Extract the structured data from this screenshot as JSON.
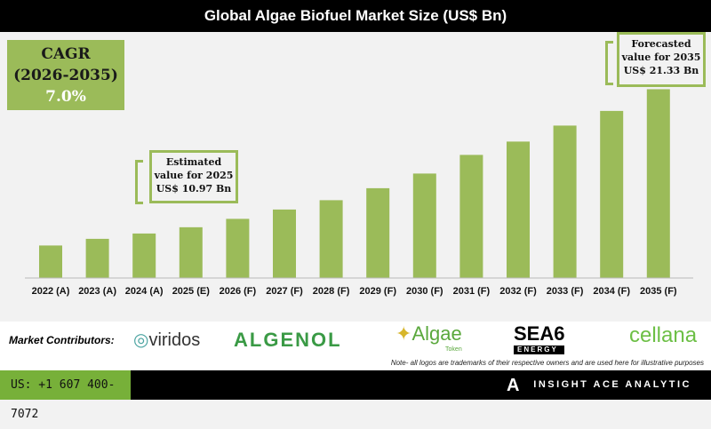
{
  "title": "Global Algae Biofuel Market Size (US$ Bn)",
  "cagr": {
    "label": "CAGR",
    "period": "(2026-2035)",
    "value": "7.0%"
  },
  "callouts": {
    "estimated": [
      "Estimated",
      "value for 2025",
      "US$ 10.97 Bn"
    ],
    "forecasted": [
      "Forecasted",
      "value for 2035",
      "US$ 21.33 Bn"
    ]
  },
  "chart_data": {
    "type": "bar",
    "title": "Global Algae Biofuel Market Size (US$ Bn)",
    "categories": [
      "2022 (A)",
      "2023 (A)",
      "2024 (A)",
      "2025 (E)",
      "2026 (F)",
      "2027 (F)",
      "2028 (F)",
      "2029 (F)",
      "2030 (F)",
      "2031 (F)",
      "2032 (F)",
      "2033 (F)",
      "2034 (F)",
      "2035 (F)"
    ],
    "values": [
      9.6,
      10.1,
      10.5,
      10.97,
      11.6,
      12.3,
      13.0,
      13.9,
      15.0,
      16.4,
      17.4,
      18.6,
      19.7,
      21.33
    ],
    "color": "#9bbb59",
    "xlabel": "",
    "ylabel": "US$ Bn",
    "grid": false
  },
  "contributors": {
    "label": "Market Contributors:",
    "logos": [
      "viridos",
      "ALGENOL",
      "Algae",
      "Token",
      "SEA6",
      "ENERGY",
      "cellana"
    ],
    "note": "Note- all logos are trademarks of their respective owners and are used here for illustrative purposes"
  },
  "footer": {
    "phone": "US: +1 607 400-7072",
    "brand": "INSIGHT ACE ANALYTIC",
    "brand_mark": "IA"
  }
}
